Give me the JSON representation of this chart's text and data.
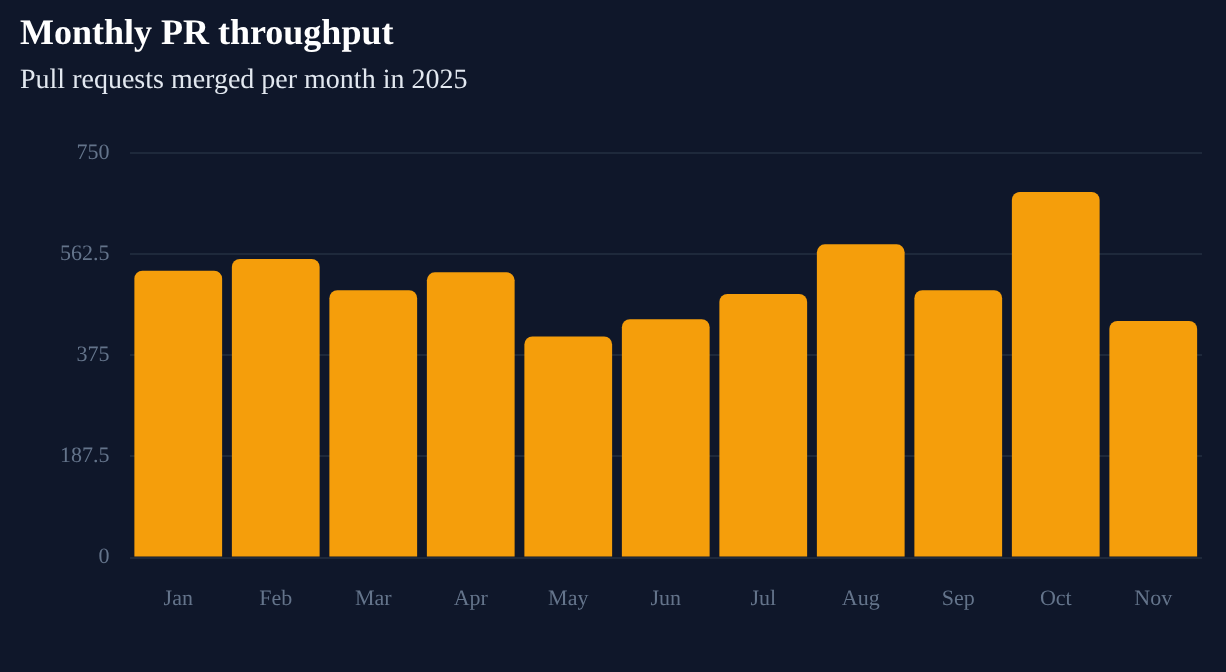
{
  "chart_data": {
    "type": "bar",
    "title": "Monthly PR throughput",
    "subtitle": "Pull requests merged per month in 2025",
    "categories": [
      "Jan",
      "Feb",
      "Mar",
      "Apr",
      "May",
      "Jun",
      "Jul",
      "Aug",
      "Sep",
      "Oct",
      "Nov"
    ],
    "values": [
      532,
      554,
      496,
      529,
      410,
      442,
      489,
      581,
      496,
      678,
      439
    ],
    "color": "#f59e0b",
    "ylim": [
      0,
      750
    ],
    "yticks": [
      0,
      187.5,
      375,
      562.5,
      750
    ],
    "grid": "y",
    "legend": false
  }
}
